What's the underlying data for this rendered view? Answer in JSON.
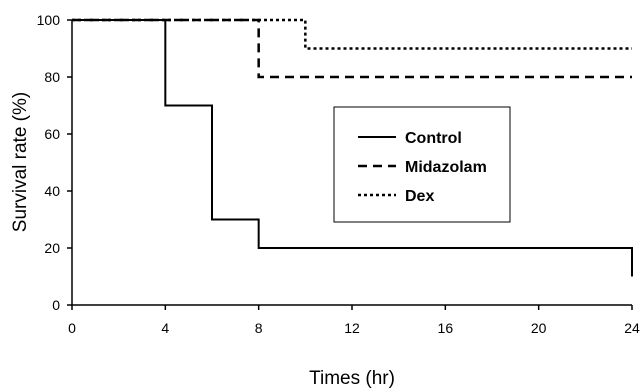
{
  "chart_data": {
    "type": "line",
    "xlabel": "Times (hr)",
    "ylabel": "Survival rate (%)",
    "xlim": [
      0,
      24
    ],
    "ylim": [
      0,
      100
    ],
    "x_ticks": [
      0,
      4,
      8,
      12,
      16,
      20,
      24
    ],
    "y_ticks": [
      0,
      20,
      40,
      60,
      80,
      100
    ],
    "grid": false,
    "legend_position": "center-right",
    "step": true,
    "series": [
      {
        "name": "Control",
        "dash": "solid",
        "x": [
          0,
          4,
          6,
          8,
          24,
          24
        ],
        "y": [
          100,
          70,
          30,
          20,
          20,
          10
        ]
      },
      {
        "name": "Midazolam",
        "dash": "dashed",
        "x": [
          0,
          8,
          24
        ],
        "y": [
          100,
          80,
          80
        ]
      },
      {
        "name": "Dex",
        "dash": "dotted",
        "x": [
          0,
          10,
          24
        ],
        "y": [
          100,
          90,
          90
        ]
      }
    ]
  }
}
